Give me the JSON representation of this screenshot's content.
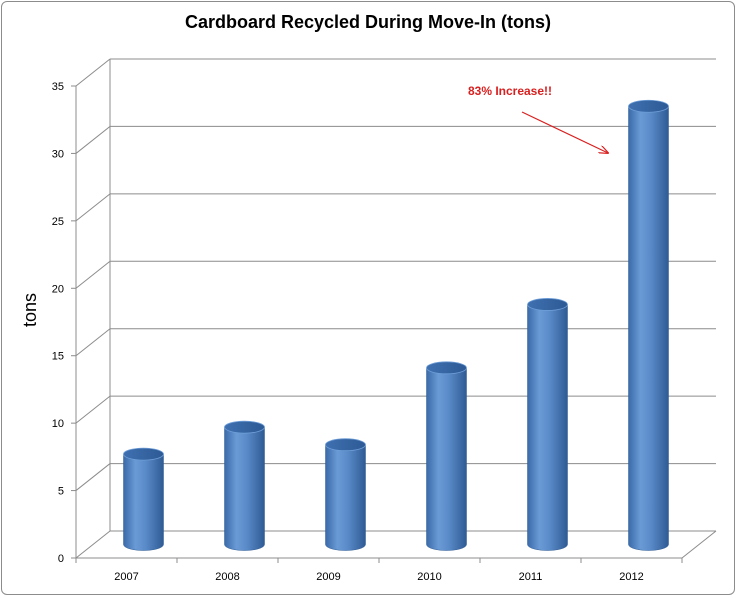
{
  "chart_data": {
    "type": "bar",
    "title": "Cardboard Recycled During Move-In (tons)",
    "xlabel": "",
    "ylabel": "tons",
    "categories": [
      "2007",
      "2008",
      "2009",
      "2010",
      "2011",
      "2012"
    ],
    "values": [
      6.7,
      8.7,
      7.4,
      13.1,
      17.8,
      32.5
    ],
    "ylim": [
      0,
      35
    ],
    "yticks": [
      0,
      5,
      10,
      15,
      20,
      25,
      30,
      35
    ],
    "grid": true,
    "legend": "none",
    "bar_shape": "cylinder",
    "bar_color": "#4f81bd",
    "annotation": {
      "text": "83% Increase!!",
      "color": "#d92020",
      "points_to": "2012"
    }
  }
}
